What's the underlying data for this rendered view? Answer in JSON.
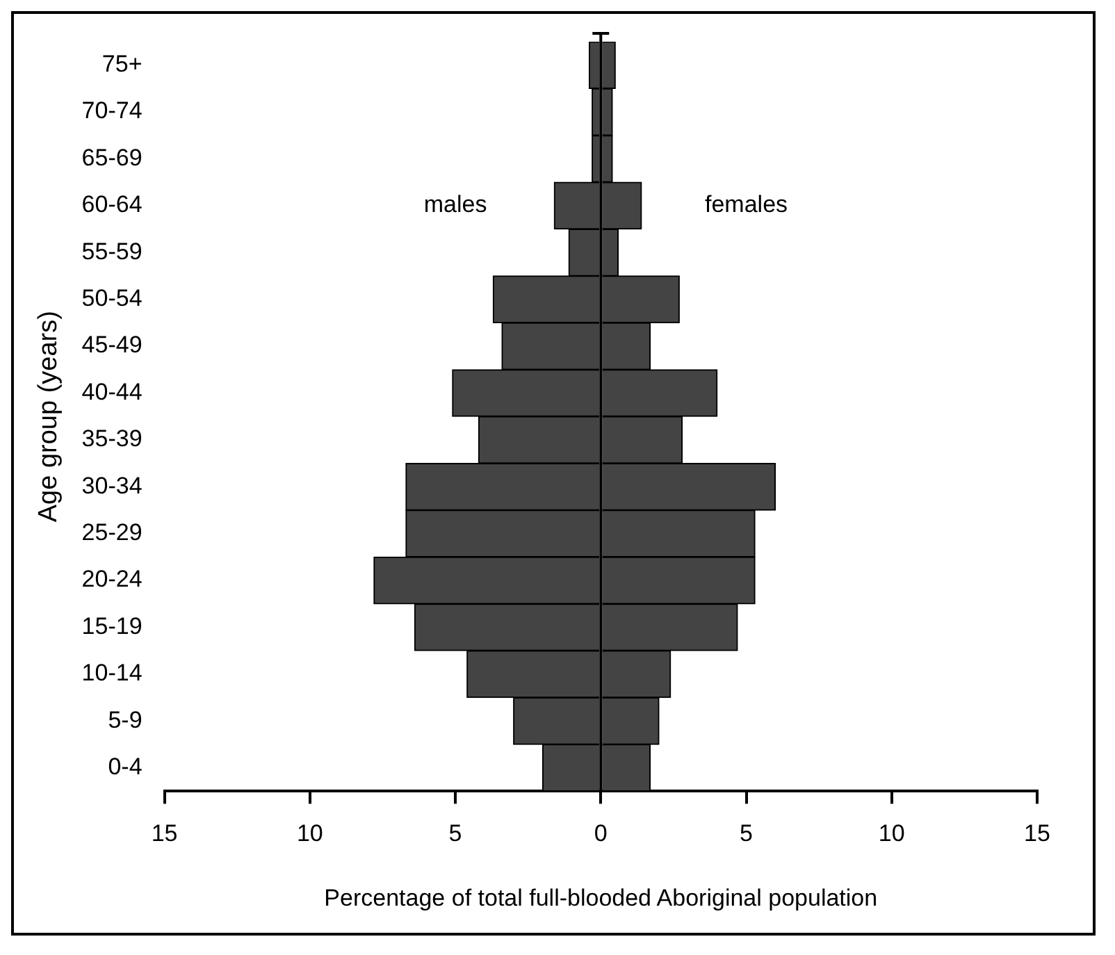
{
  "chart_data": {
    "type": "bar",
    "orientation": "horizontal",
    "stacked": true,
    "xlabel": "Percentage of total full-blooded Aboriginal population",
    "ylabel": "Age group (years)",
    "categories": [
      "75+",
      "70-74",
      "65-69",
      "60-64",
      "55-59",
      "50-54",
      "45-49",
      "40-44",
      "35-39",
      "30-34",
      "25-29",
      "20-24",
      "15-19",
      "10-14",
      "5-9",
      "0-4"
    ],
    "series": [
      {
        "name": "males",
        "color": "#444444",
        "values": [
          -0.4,
          -0.3,
          -0.3,
          -1.6,
          -1.1,
          -3.7,
          -3.4,
          -5.1,
          -4.2,
          -6.7,
          -6.7,
          -7.8,
          -6.4,
          -4.6,
          -3.0,
          -2.0
        ]
      },
      {
        "name": "females",
        "color": "#444444",
        "values": [
          0.5,
          0.4,
          0.4,
          1.4,
          0.6,
          2.7,
          1.7,
          4.0,
          2.8,
          6.0,
          5.3,
          5.3,
          4.7,
          2.4,
          2.0,
          1.7
        ]
      }
    ],
    "xlim": [
      -15,
      15
    ],
    "xticks": [
      {
        "value": -15,
        "label": "15"
      },
      {
        "value": -10,
        "label": "10"
      },
      {
        "value": -5,
        "label": "5"
      },
      0,
      5,
      10,
      15
    ],
    "ref_lines": [
      {
        "axis": "x",
        "value": 0,
        "color": "#000000"
      }
    ],
    "grid": false,
    "legend": false
  }
}
